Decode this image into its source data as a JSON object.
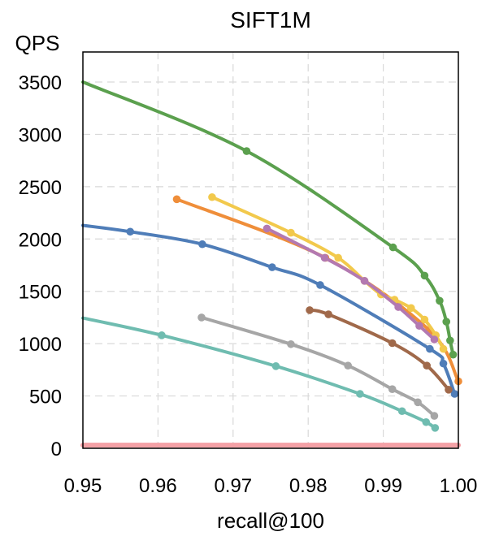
{
  "chart_data": {
    "type": "line",
    "title": "SIFT1M",
    "xlabel": "recall@100",
    "ylabel": "QPS",
    "xlim": [
      0.95,
      1.0
    ],
    "ylim": [
      0,
      3500
    ],
    "xticks": [
      0.95,
      0.96,
      0.97,
      0.98,
      0.99,
      1.0
    ],
    "xtick_labels": [
      "0.95",
      "0.96",
      "0.97",
      "0.98",
      "0.99",
      "1.00"
    ],
    "yticks": [
      0,
      500,
      1000,
      1500,
      2000,
      2500,
      3000,
      3500
    ],
    "ytick_labels": [
      "0",
      "500",
      "1000",
      "1500",
      "2000",
      "2500",
      "3000",
      "3500"
    ],
    "grid": true,
    "series": [
      {
        "color": "#5ba04e",
        "x": [
          0.95,
          0.9718,
          0.9913,
          0.9955,
          0.9975,
          0.9984,
          0.9989,
          0.9993
        ],
        "y": [
          3500,
          2840,
          1920,
          1650,
          1410,
          1210,
          1030,
          895
        ]
      },
      {
        "color": "#ef8e3a",
        "x": [
          0.9625,
          0.9823,
          0.9961,
          1.0
        ],
        "y": [
          2380,
          1820,
          1130,
          640
        ]
      },
      {
        "color": "#f2c94c",
        "x": [
          0.9672,
          0.9777,
          0.984,
          0.9875,
          0.9897,
          0.9915,
          0.9937,
          0.9955,
          0.997,
          0.998
        ],
        "y": [
          2400,
          2060,
          1820,
          1600,
          1470,
          1420,
          1340,
          1230,
          1080,
          950
        ]
      },
      {
        "color": "#b379b1",
        "x": [
          0.9745,
          0.9822,
          0.9875,
          0.992,
          0.9948,
          0.9968
        ],
        "y": [
          2100,
          1820,
          1600,
          1350,
          1170,
          1040
        ]
      },
      {
        "color": "#4f7db8",
        "x": [
          0.95,
          0.9563,
          0.9659,
          0.9752,
          0.9816,
          0.9962,
          0.998,
          0.9995
        ],
        "y": [
          2130,
          2070,
          1950,
          1730,
          1560,
          950,
          810,
          520
        ]
      },
      {
        "color": "#a0694a",
        "x": [
          0.9802,
          0.9827,
          0.9912,
          0.9958,
          0.9987
        ],
        "y": [
          1320,
          1280,
          1005,
          790,
          560
        ]
      },
      {
        "color": "#a6a6a6",
        "x": [
          0.9658,
          0.9777,
          0.9853,
          0.9912,
          0.9946,
          0.9968
        ],
        "y": [
          1250,
          995,
          790,
          565,
          440,
          310
        ]
      },
      {
        "color": "#6fbcb0",
        "x": [
          0.95,
          0.9605,
          0.9757,
          0.9869,
          0.9925,
          0.9957,
          0.9969
        ],
        "y": [
          1245,
          1080,
          785,
          520,
          355,
          250,
          195
        ]
      },
      {
        "color": "#f4a1a6",
        "x": [
          0.95,
          1.0
        ],
        "y": [
          30,
          30
        ]
      }
    ]
  }
}
